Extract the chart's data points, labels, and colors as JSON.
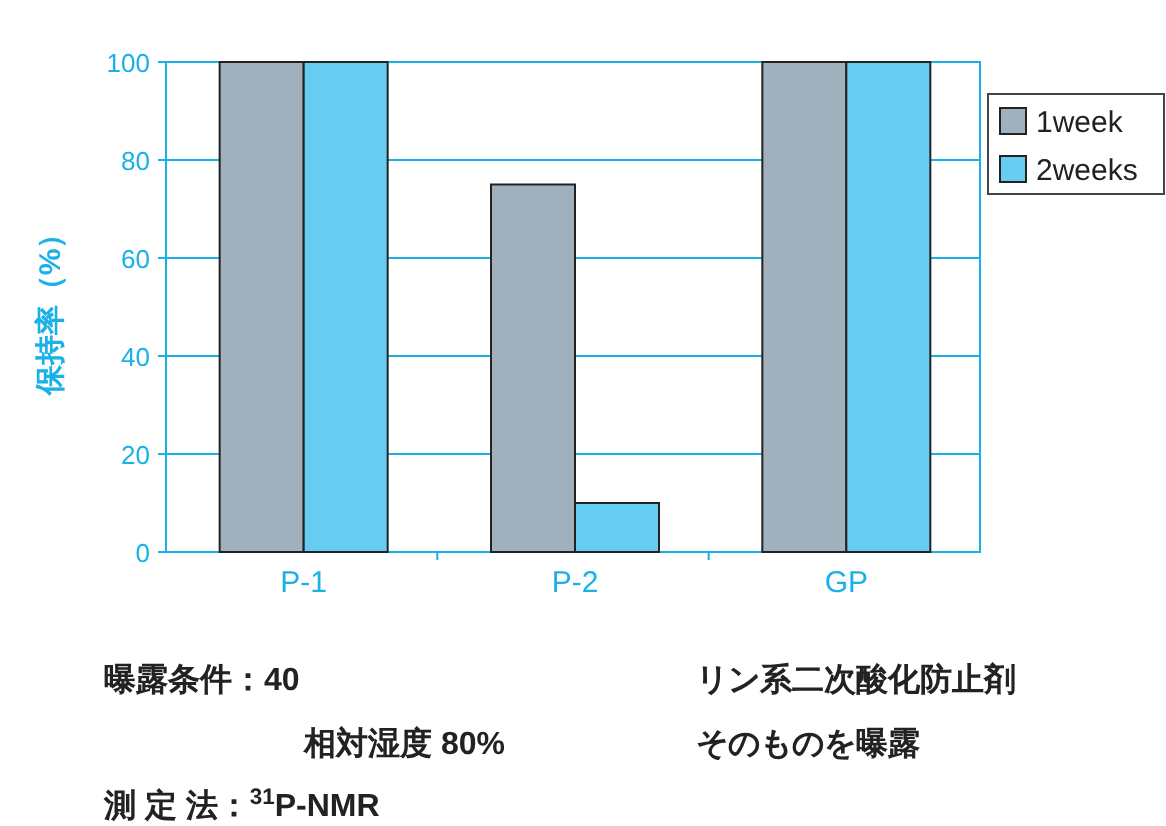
{
  "chart_data": {
    "type": "bar",
    "ylabel": "保持率（%）",
    "categories": [
      "P-1",
      "P-2",
      "GP"
    ],
    "series": [
      {
        "name": "1week",
        "color": "#a0b0bc",
        "values": [
          100,
          75,
          100
        ]
      },
      {
        "name": "2weeks",
        "color": "#66ccf2",
        "values": [
          100,
          10,
          100
        ]
      }
    ],
    "ylim": [
      0,
      100
    ],
    "yticks": [
      0,
      20,
      40,
      60,
      80,
      100
    ],
    "grid": "y",
    "legend": "right",
    "annotations": [
      "曝露条件：40",
      "相対湿度 80%",
      "測 定 法：$^{31}$P-NMR",
      "リン系二次酸化防止剤",
      "そのものを曝露"
    ]
  }
}
